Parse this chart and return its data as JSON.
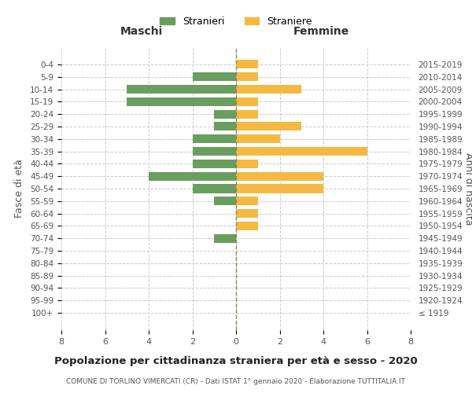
{
  "age_groups": [
    "100+",
    "95-99",
    "90-94",
    "85-89",
    "80-84",
    "75-79",
    "70-74",
    "65-69",
    "60-64",
    "55-59",
    "50-54",
    "45-49",
    "40-44",
    "35-39",
    "30-34",
    "25-29",
    "20-24",
    "15-19",
    "10-14",
    "5-9",
    "0-4"
  ],
  "birth_years": [
    "≤ 1919",
    "1920-1924",
    "1925-1929",
    "1930-1934",
    "1935-1939",
    "1940-1944",
    "1945-1949",
    "1950-1954",
    "1955-1959",
    "1960-1964",
    "1965-1969",
    "1970-1974",
    "1975-1979",
    "1980-1984",
    "1985-1989",
    "1990-1994",
    "1995-1999",
    "2000-2004",
    "2005-2009",
    "2010-2014",
    "2015-2019"
  ],
  "males": [
    0,
    0,
    0,
    0,
    0,
    0,
    1,
    0,
    0,
    1,
    2,
    4,
    2,
    2,
    2,
    1,
    1,
    5,
    5,
    2,
    0
  ],
  "females": [
    0,
    0,
    0,
    0,
    0,
    0,
    0,
    1,
    1,
    1,
    4,
    4,
    1,
    6,
    2,
    3,
    1,
    1,
    3,
    1,
    1
  ],
  "male_color": "#6a9e5f",
  "female_color": "#f5b942",
  "male_label": "Stranieri",
  "female_label": "Straniere",
  "title": "Popolazione per cittadinanza straniera per età e sesso - 2020",
  "subtitle": "COMUNE DI TORLINO VIMERCATI (CR) - Dati ISTAT 1° gennaio 2020 - Elaborazione TUTTITALIA.IT",
  "xlabel_left": "Maschi",
  "xlabel_right": "Femmine",
  "ylabel_left": "Fasce di età",
  "ylabel_right": "Anni di nascita",
  "xlim": 8,
  "background_color": "#ffffff",
  "grid_color": "#cccccc"
}
